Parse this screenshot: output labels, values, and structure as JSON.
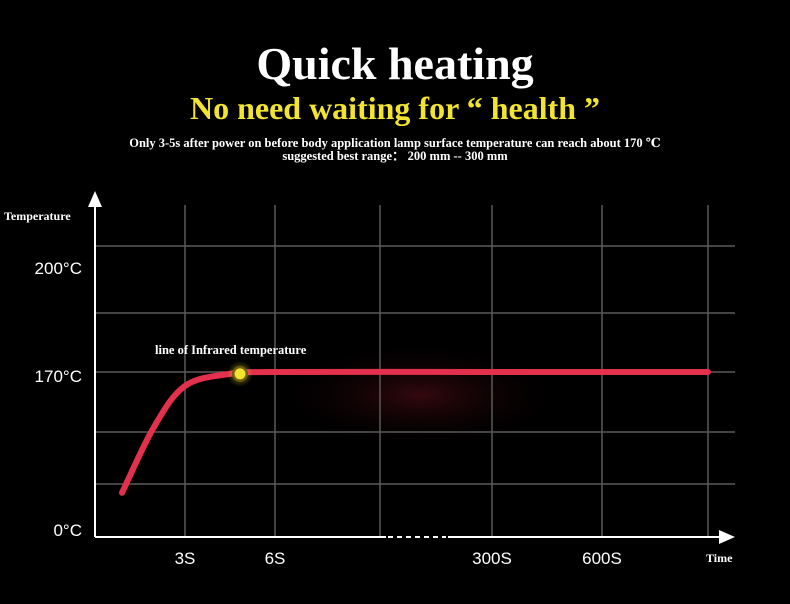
{
  "header": {
    "title": "Quick heating",
    "subtitle": "No need waiting for “ health ”",
    "note_line1": "Only 3-5s after power on before body application lamp surface temperature can reach about 170 ℃",
    "note_line2": "suggested best range：  200 mm -- 300 mm"
  },
  "colors": {
    "background": "#000000",
    "curve": "#e3304c",
    "highlight": "#f3e52d",
    "grid": "#5a5a5a"
  },
  "chart_data": {
    "type": "line",
    "title": "",
    "xlabel": "Time",
    "ylabel": "Temperature",
    "x_ticks": [
      "3S",
      "6S",
      "300S",
      "600S"
    ],
    "y_ticks": [
      "0°C",
      "170°C",
      "200°C"
    ],
    "x_axis_break": true,
    "grid": true,
    "series": [
      {
        "name": "line of Infrared temperature",
        "points": [
          {
            "x": 0,
            "y": 40
          },
          {
            "x": 1.5,
            "y": 110
          },
          {
            "x": 3,
            "y": 155
          },
          {
            "x": 4.5,
            "y": 168
          },
          {
            "x": 6,
            "y": 170
          },
          {
            "x": 300,
            "y": 170
          },
          {
            "x": 600,
            "y": 170
          },
          {
            "x": 900,
            "y": 170
          }
        ]
      }
    ],
    "annotation": {
      "text": "line of Infrared temperature",
      "x": 4.5,
      "y": 168
    }
  }
}
